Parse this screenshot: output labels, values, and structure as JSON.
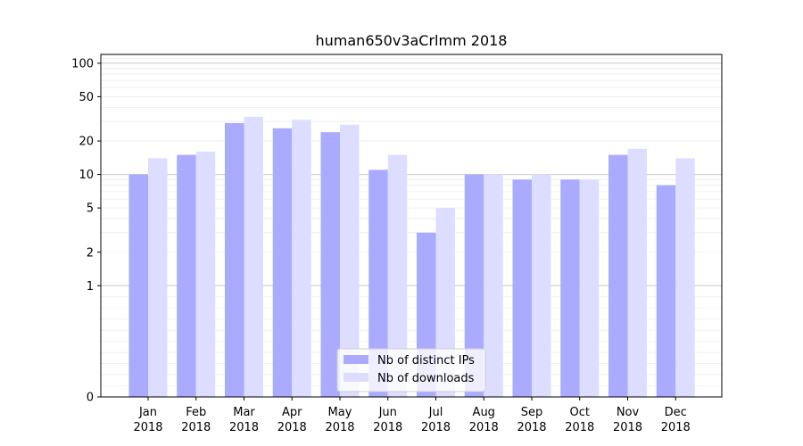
{
  "chart_data": {
    "type": "bar",
    "title": "human650v3aCrlmm 2018",
    "categories": [
      [
        "Jan",
        "2018"
      ],
      [
        "Feb",
        "2018"
      ],
      [
        "Mar",
        "2018"
      ],
      [
        "Apr",
        "2018"
      ],
      [
        "May",
        "2018"
      ],
      [
        "Jun",
        "2018"
      ],
      [
        "Jul",
        "2018"
      ],
      [
        "Aug",
        "2018"
      ],
      [
        "Sep",
        "2018"
      ],
      [
        "Oct",
        "2018"
      ],
      [
        "Nov",
        "2018"
      ],
      [
        "Dec",
        "2018"
      ]
    ],
    "series": [
      {
        "name": "Nb of distinct IPs",
        "color": "#aaaaff",
        "values": [
          10,
          15,
          29,
          26,
          24,
          11,
          3,
          10,
          9,
          9,
          15,
          8
        ]
      },
      {
        "name": "Nb of downloads",
        "color": "#ddddff",
        "values": [
          14,
          16,
          33,
          31,
          28,
          15,
          5,
          10,
          10,
          9,
          17,
          14
        ]
      }
    ],
    "y_scale": "symlog",
    "ylim": [
      0,
      120
    ],
    "y_tick_labels": [
      "0",
      "1",
      "2",
      "5",
      "10",
      "20",
      "50",
      "100"
    ],
    "xlabel": "",
    "ylabel": "",
    "grid": true,
    "legend_position": "lower-center"
  }
}
